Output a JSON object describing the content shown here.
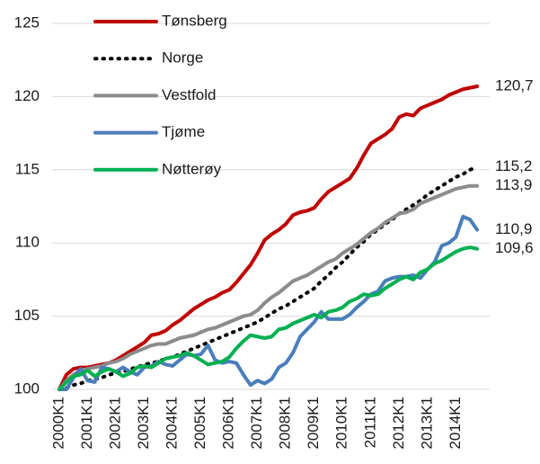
{
  "chart_data": {
    "type": "line",
    "categories": [
      "2000K1",
      null,
      null,
      null,
      "2001K1",
      null,
      null,
      null,
      "2002K1",
      null,
      null,
      null,
      "2003K1",
      null,
      null,
      null,
      "2004K1",
      null,
      null,
      null,
      "2005K1",
      null,
      null,
      null,
      "2006K1",
      null,
      null,
      null,
      "2007K1",
      null,
      null,
      null,
      "2008K1",
      null,
      null,
      null,
      "2009K1",
      null,
      null,
      null,
      "2010K1",
      null,
      null,
      null,
      "2011K1",
      null,
      null,
      null,
      "2012K1",
      null,
      null,
      null,
      "2013K1",
      null,
      null,
      null,
      "2014K1",
      null,
      null,
      null
    ],
    "ylim": [
      100,
      125
    ],
    "yticks": [
      100,
      105,
      110,
      115,
      120,
      125
    ],
    "grid": true,
    "legend": "upper left",
    "series": [
      {
        "name": "Tønsberg",
        "color": "#c00000",
        "dash": "solid",
        "values": [
          100,
          101.0,
          101.4,
          101.5,
          101.5,
          101.6,
          101.7,
          101.8,
          102.0,
          102.3,
          102.6,
          102.9,
          103.2,
          103.7,
          103.8,
          104.0,
          104.4,
          104.7,
          105.1,
          105.5,
          105.8,
          106.1,
          106.3,
          106.6,
          106.8,
          107.3,
          107.9,
          108.5,
          109.3,
          110.2,
          110.6,
          110.9,
          111.3,
          111.9,
          112.1,
          112.2,
          112.4,
          113.0,
          113.5,
          113.8,
          114.1,
          114.4,
          115.1,
          116.0,
          116.8,
          117.1,
          117.4,
          117.8,
          118.6,
          118.8,
          118.7,
          119.2,
          119.4,
          119.6,
          119.8,
          120.1,
          120.3,
          120.5,
          120.6,
          120.7
        ],
        "value_labels": [
          null,
          null,
          null,
          null,
          null,
          null,
          null,
          null,
          null,
          null,
          null,
          null,
          null,
          null,
          null,
          null,
          null,
          null,
          null,
          null,
          null,
          null,
          null,
          null,
          null,
          null,
          null,
          null,
          null,
          null,
          null,
          null,
          null,
          null,
          null,
          null,
          null,
          null,
          null,
          null,
          null,
          null,
          null,
          null,
          null,
          null,
          null,
          null,
          null,
          null,
          null,
          null,
          null,
          null,
          null,
          null,
          null,
          null,
          null,
          "120,7"
        ]
      },
      {
        "name": "Norge",
        "color": "#000000",
        "dash": "dotted",
        "values": [
          100,
          100.1,
          100.3,
          100.4,
          100.6,
          100.7,
          100.8,
          101.0,
          101.1,
          101.2,
          101.4,
          101.5,
          101.7,
          101.8,
          101.9,
          102.1,
          102.2,
          102.4,
          102.6,
          102.8,
          103.0,
          103.2,
          103.4,
          103.6,
          103.8,
          104.0,
          104.2,
          104.4,
          104.6,
          104.9,
          105.2,
          105.5,
          105.7,
          106.0,
          106.3,
          106.6,
          106.9,
          107.4,
          107.8,
          108.3,
          108.7,
          109.2,
          109.7,
          110.1,
          110.6,
          110.9,
          111.3,
          111.6,
          112.0,
          112.3,
          112.6,
          112.9,
          113.3,
          113.6,
          113.9,
          114.2,
          114.5,
          114.7,
          115.0,
          115.2
        ],
        "value_labels": [
          null,
          null,
          null,
          null,
          null,
          null,
          null,
          null,
          null,
          null,
          null,
          null,
          null,
          null,
          null,
          null,
          null,
          null,
          null,
          null,
          null,
          null,
          null,
          null,
          null,
          null,
          null,
          null,
          null,
          null,
          null,
          null,
          null,
          null,
          null,
          null,
          null,
          null,
          null,
          null,
          null,
          null,
          null,
          null,
          null,
          null,
          null,
          null,
          null,
          null,
          null,
          null,
          null,
          null,
          null,
          null,
          null,
          null,
          null,
          "115,2"
        ]
      },
      {
        "name": "Vestfold",
        "color": "#8c8c8c",
        "dash": "solid",
        "values": [
          100,
          100.6,
          101.0,
          101.3,
          101.4,
          101.5,
          101.6,
          101.8,
          101.9,
          102.1,
          102.4,
          102.6,
          102.8,
          103.0,
          103.1,
          103.1,
          103.3,
          103.5,
          103.6,
          103.7,
          103.9,
          104.1,
          104.2,
          104.4,
          104.6,
          104.8,
          105.0,
          105.1,
          105.4,
          105.9,
          106.3,
          106.6,
          107.0,
          107.4,
          107.6,
          107.8,
          108.1,
          108.4,
          108.7,
          108.9,
          109.3,
          109.6,
          109.9,
          110.3,
          110.7,
          111.0,
          111.4,
          111.7,
          112.0,
          112.1,
          112.3,
          112.7,
          112.9,
          113.1,
          113.3,
          113.5,
          113.7,
          113.8,
          113.9,
          113.9
        ],
        "value_labels": [
          null,
          null,
          null,
          null,
          null,
          null,
          null,
          null,
          null,
          null,
          null,
          null,
          null,
          null,
          null,
          null,
          null,
          null,
          null,
          null,
          null,
          null,
          null,
          null,
          null,
          null,
          null,
          null,
          null,
          null,
          null,
          null,
          null,
          null,
          null,
          null,
          null,
          null,
          null,
          null,
          null,
          null,
          null,
          null,
          null,
          null,
          null,
          null,
          null,
          null,
          null,
          null,
          null,
          null,
          null,
          null,
          null,
          null,
          null,
          "113,9"
        ]
      },
      {
        "name": "Tjøme",
        "color": "#4a7ebb",
        "dash": "solid",
        "values": [
          100,
          100.0,
          100.8,
          101.4,
          100.6,
          100.5,
          101.5,
          101.4,
          101.2,
          101.5,
          101.2,
          101.0,
          101.5,
          101.6,
          101.9,
          101.7,
          101.6,
          102.0,
          102.4,
          102.3,
          102.4,
          103.0,
          102.0,
          101.8,
          101.9,
          101.8,
          101.0,
          100.3,
          100.6,
          100.4,
          100.7,
          101.5,
          101.8,
          102.5,
          103.6,
          104.1,
          104.6,
          105.3,
          104.8,
          104.8,
          104.8,
          105.1,
          105.6,
          106.0,
          106.5,
          106.7,
          107.4,
          107.6,
          107.7,
          107.7,
          107.8,
          107.6,
          108.2,
          108.7,
          109.8,
          110.0,
          110.4,
          111.8,
          111.6,
          110.9
        ],
        "value_labels": [
          null,
          null,
          null,
          null,
          null,
          null,
          null,
          null,
          null,
          null,
          null,
          null,
          null,
          null,
          null,
          null,
          null,
          null,
          null,
          null,
          null,
          null,
          null,
          null,
          null,
          null,
          null,
          null,
          null,
          null,
          null,
          null,
          null,
          null,
          null,
          null,
          null,
          null,
          null,
          null,
          null,
          null,
          null,
          null,
          null,
          null,
          null,
          null,
          null,
          null,
          null,
          null,
          null,
          null,
          null,
          null,
          null,
          null,
          null,
          "110,9"
        ]
      },
      {
        "name": "Nøtterøy",
        "color": "#00b050",
        "dash": "solid",
        "values": [
          100,
          100.5,
          100.9,
          101.0,
          101.3,
          100.9,
          101.2,
          101.4,
          101.2,
          100.9,
          101.1,
          101.5,
          101.6,
          101.5,
          101.8,
          102.1,
          102.2,
          102.3,
          102.5,
          102.3,
          102.0,
          101.7,
          101.8,
          101.9,
          102.2,
          102.8,
          103.3,
          103.7,
          103.6,
          103.5,
          103.6,
          104.1,
          104.2,
          104.5,
          104.7,
          104.9,
          105.1,
          104.9,
          105.3,
          105.4,
          105.6,
          106.0,
          106.2,
          106.5,
          106.4,
          106.5,
          106.9,
          107.2,
          107.5,
          107.7,
          107.5,
          108.0,
          108.2,
          108.6,
          108.8,
          109.1,
          109.4,
          109.6,
          109.7,
          109.6
        ],
        "value_labels": [
          null,
          null,
          null,
          null,
          null,
          null,
          null,
          null,
          null,
          null,
          null,
          null,
          null,
          null,
          null,
          null,
          null,
          null,
          null,
          null,
          null,
          null,
          null,
          null,
          null,
          null,
          null,
          null,
          null,
          null,
          null,
          null,
          null,
          null,
          null,
          null,
          null,
          null,
          null,
          null,
          null,
          null,
          null,
          null,
          null,
          null,
          null,
          null,
          null,
          null,
          null,
          null,
          null,
          null,
          null,
          null,
          null,
          null,
          null,
          "109,6"
        ]
      }
    ]
  }
}
